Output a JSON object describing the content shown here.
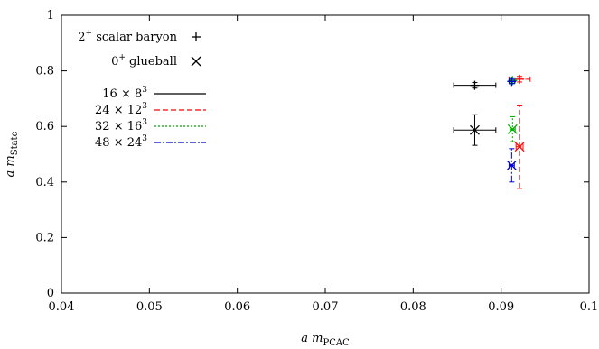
{
  "chart_data": {
    "type": "scatter",
    "xlabel": {
      "pre": "a m",
      "sub": "PCAC"
    },
    "ylabel": {
      "pre": "a m",
      "sub": "State"
    },
    "xlim": [
      0.04,
      0.1
    ],
    "ylim": [
      0,
      1
    ],
    "xticks": [
      0.04,
      0.05,
      0.06,
      0.07,
      0.08,
      0.09,
      0.1
    ],
    "yticks": [
      0,
      0.2,
      0.4,
      0.6,
      0.8,
      1
    ],
    "xtick_labels": [
      "0.04",
      "0.05",
      "0.06",
      "0.07",
      "0.08",
      "0.09",
      "0.1"
    ],
    "ytick_labels": [
      "0",
      "0.2",
      "0.4",
      "0.6",
      "0.8",
      "1"
    ],
    "grid": false,
    "legend_position": "top-left",
    "marker_legend": [
      {
        "label_main": "2",
        "label_sup": "+",
        "label_rest": " scalar baryon",
        "marker": "plus"
      },
      {
        "label_main": "0",
        "label_sup": "+",
        "label_rest": " glueball",
        "marker": "cross"
      }
    ],
    "series": [
      {
        "name": {
          "base": "16 × 8",
          "sup": "3"
        },
        "color": "#000000",
        "dash": "",
        "points": [
          {
            "marker": "plus",
            "x": 0.087,
            "y": 0.748,
            "xerr": 0.0024,
            "yerr": 0.01
          },
          {
            "marker": "cross",
            "x": 0.087,
            "y": 0.587,
            "xerr": 0.0024,
            "yerr": 0.055
          }
        ]
      },
      {
        "name": {
          "base": "24 × 12",
          "sup": "3"
        },
        "color": "#ff0000",
        "dash": "6,3",
        "points": [
          {
            "marker": "plus",
            "x": 0.0921,
            "y": 0.77,
            "xerr": 0.0012,
            "yerr": 0.01
          },
          {
            "marker": "cross",
            "x": 0.0921,
            "y": 0.527,
            "xerr": 0.0004,
            "yerr": 0.15
          }
        ]
      },
      {
        "name": {
          "base": "32 × 16",
          "sup": "3"
        },
        "color": "#00aa00",
        "dash": "2,2",
        "points": [
          {
            "marker": "plus",
            "x": 0.0913,
            "y": 0.765,
            "xerr": 0.0003,
            "yerr": 0.01
          },
          {
            "marker": "cross",
            "x": 0.0913,
            "y": 0.59,
            "xerr": 0.0003,
            "yerr": 0.045
          }
        ]
      },
      {
        "name": {
          "base": "48 × 24",
          "sup": "3"
        },
        "color": "#0000cc",
        "dash": "7,2,2,2",
        "points": [
          {
            "marker": "plus",
            "x": 0.0912,
            "y": 0.762,
            "xerr": 0.0003,
            "yerr": 0.008
          },
          {
            "marker": "cross",
            "x": 0.0912,
            "y": 0.46,
            "xerr": 0.0003,
            "yerr": 0.06
          }
        ]
      }
    ]
  }
}
